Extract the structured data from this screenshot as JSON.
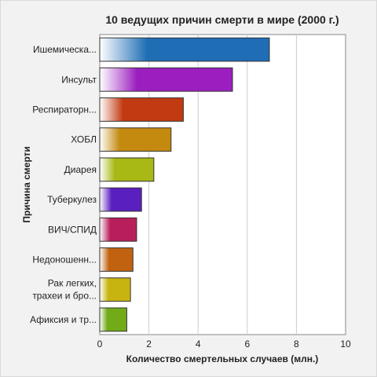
{
  "chart_data": {
    "type": "bar",
    "orientation": "horizontal",
    "title": "10 ведущих причин смерти в мире (2000 г.)",
    "xlabel": "Количество смертельных случаев (млн.)",
    "ylabel": "Причина смерти",
    "xlim": [
      0,
      10
    ],
    "xticks": [
      "0",
      "2",
      "4",
      "6",
      "8",
      "10"
    ],
    "grid": true,
    "legend": "none",
    "categories": [
      "Ишемическа...",
      "Инсульт",
      "Респираторн...",
      "ХОБЛ",
      "Диарея",
      "Туберкулез",
      "ВИЧ/СПИД",
      "Недоношенн...",
      "Рак легких,\nтрахеи и бро...",
      "Афиксия и тр..."
    ],
    "values": [
      6.9,
      5.4,
      3.4,
      2.9,
      2.2,
      1.7,
      1.5,
      1.35,
      1.25,
      1.1
    ],
    "colors": [
      "#1f6db5",
      "#9b1fbf",
      "#c23a12",
      "#c48a10",
      "#a8b814",
      "#5a1fbf",
      "#b81f5a",
      "#c0620f",
      "#c8b410",
      "#72aa18"
    ]
  }
}
